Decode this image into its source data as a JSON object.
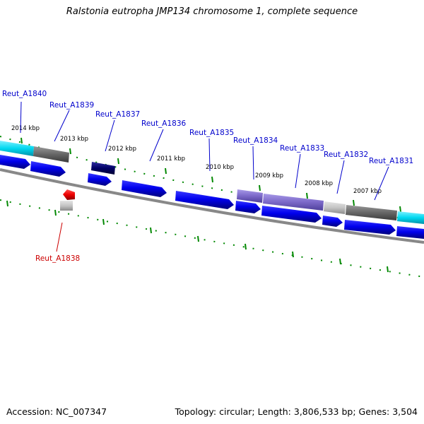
{
  "title": "Ralstonia eutropha JMP134 chromosome 1, complete sequence",
  "footer": {
    "accession": "Accession: NC_007347",
    "summary": "Topology: circular; Length: 3,806,533 bp; Genes: 3,504"
  },
  "colors": {
    "gene_label": "#0000cc",
    "highlight_label": "#cc0000",
    "forward_feature": "#0000ee",
    "reverse_feature": "#ee0000",
    "tick": "#008800",
    "backbone": "#888888",
    "cyan_feature": "#00d8f0",
    "dark_feature": "#000066",
    "purple_feature": "#7b68c8",
    "gray_feature": "#666666"
  },
  "gene_labels": [
    {
      "name": "Reut_A1840",
      "strand": "top"
    },
    {
      "name": "Reut_A1839",
      "strand": "top"
    },
    {
      "name": "Reut_A1837",
      "strand": "top"
    },
    {
      "name": "Reut_A1836",
      "strand": "top"
    },
    {
      "name": "Reut_A1835",
      "strand": "top"
    },
    {
      "name": "Reut_A1834",
      "strand": "top"
    },
    {
      "name": "Reut_A1833",
      "strand": "top"
    },
    {
      "name": "Reut_A1832",
      "strand": "top"
    },
    {
      "name": "Reut_A1831",
      "strand": "top"
    },
    {
      "name": "Reut_A1838",
      "strand": "bottom"
    }
  ],
  "kbp_labels": [
    "2014 kbp",
    "2013 kbp",
    "2012 kbp",
    "2011 kbp",
    "2010 kbp",
    "2009 kbp",
    "2008 kbp",
    "2007 kbp"
  ]
}
